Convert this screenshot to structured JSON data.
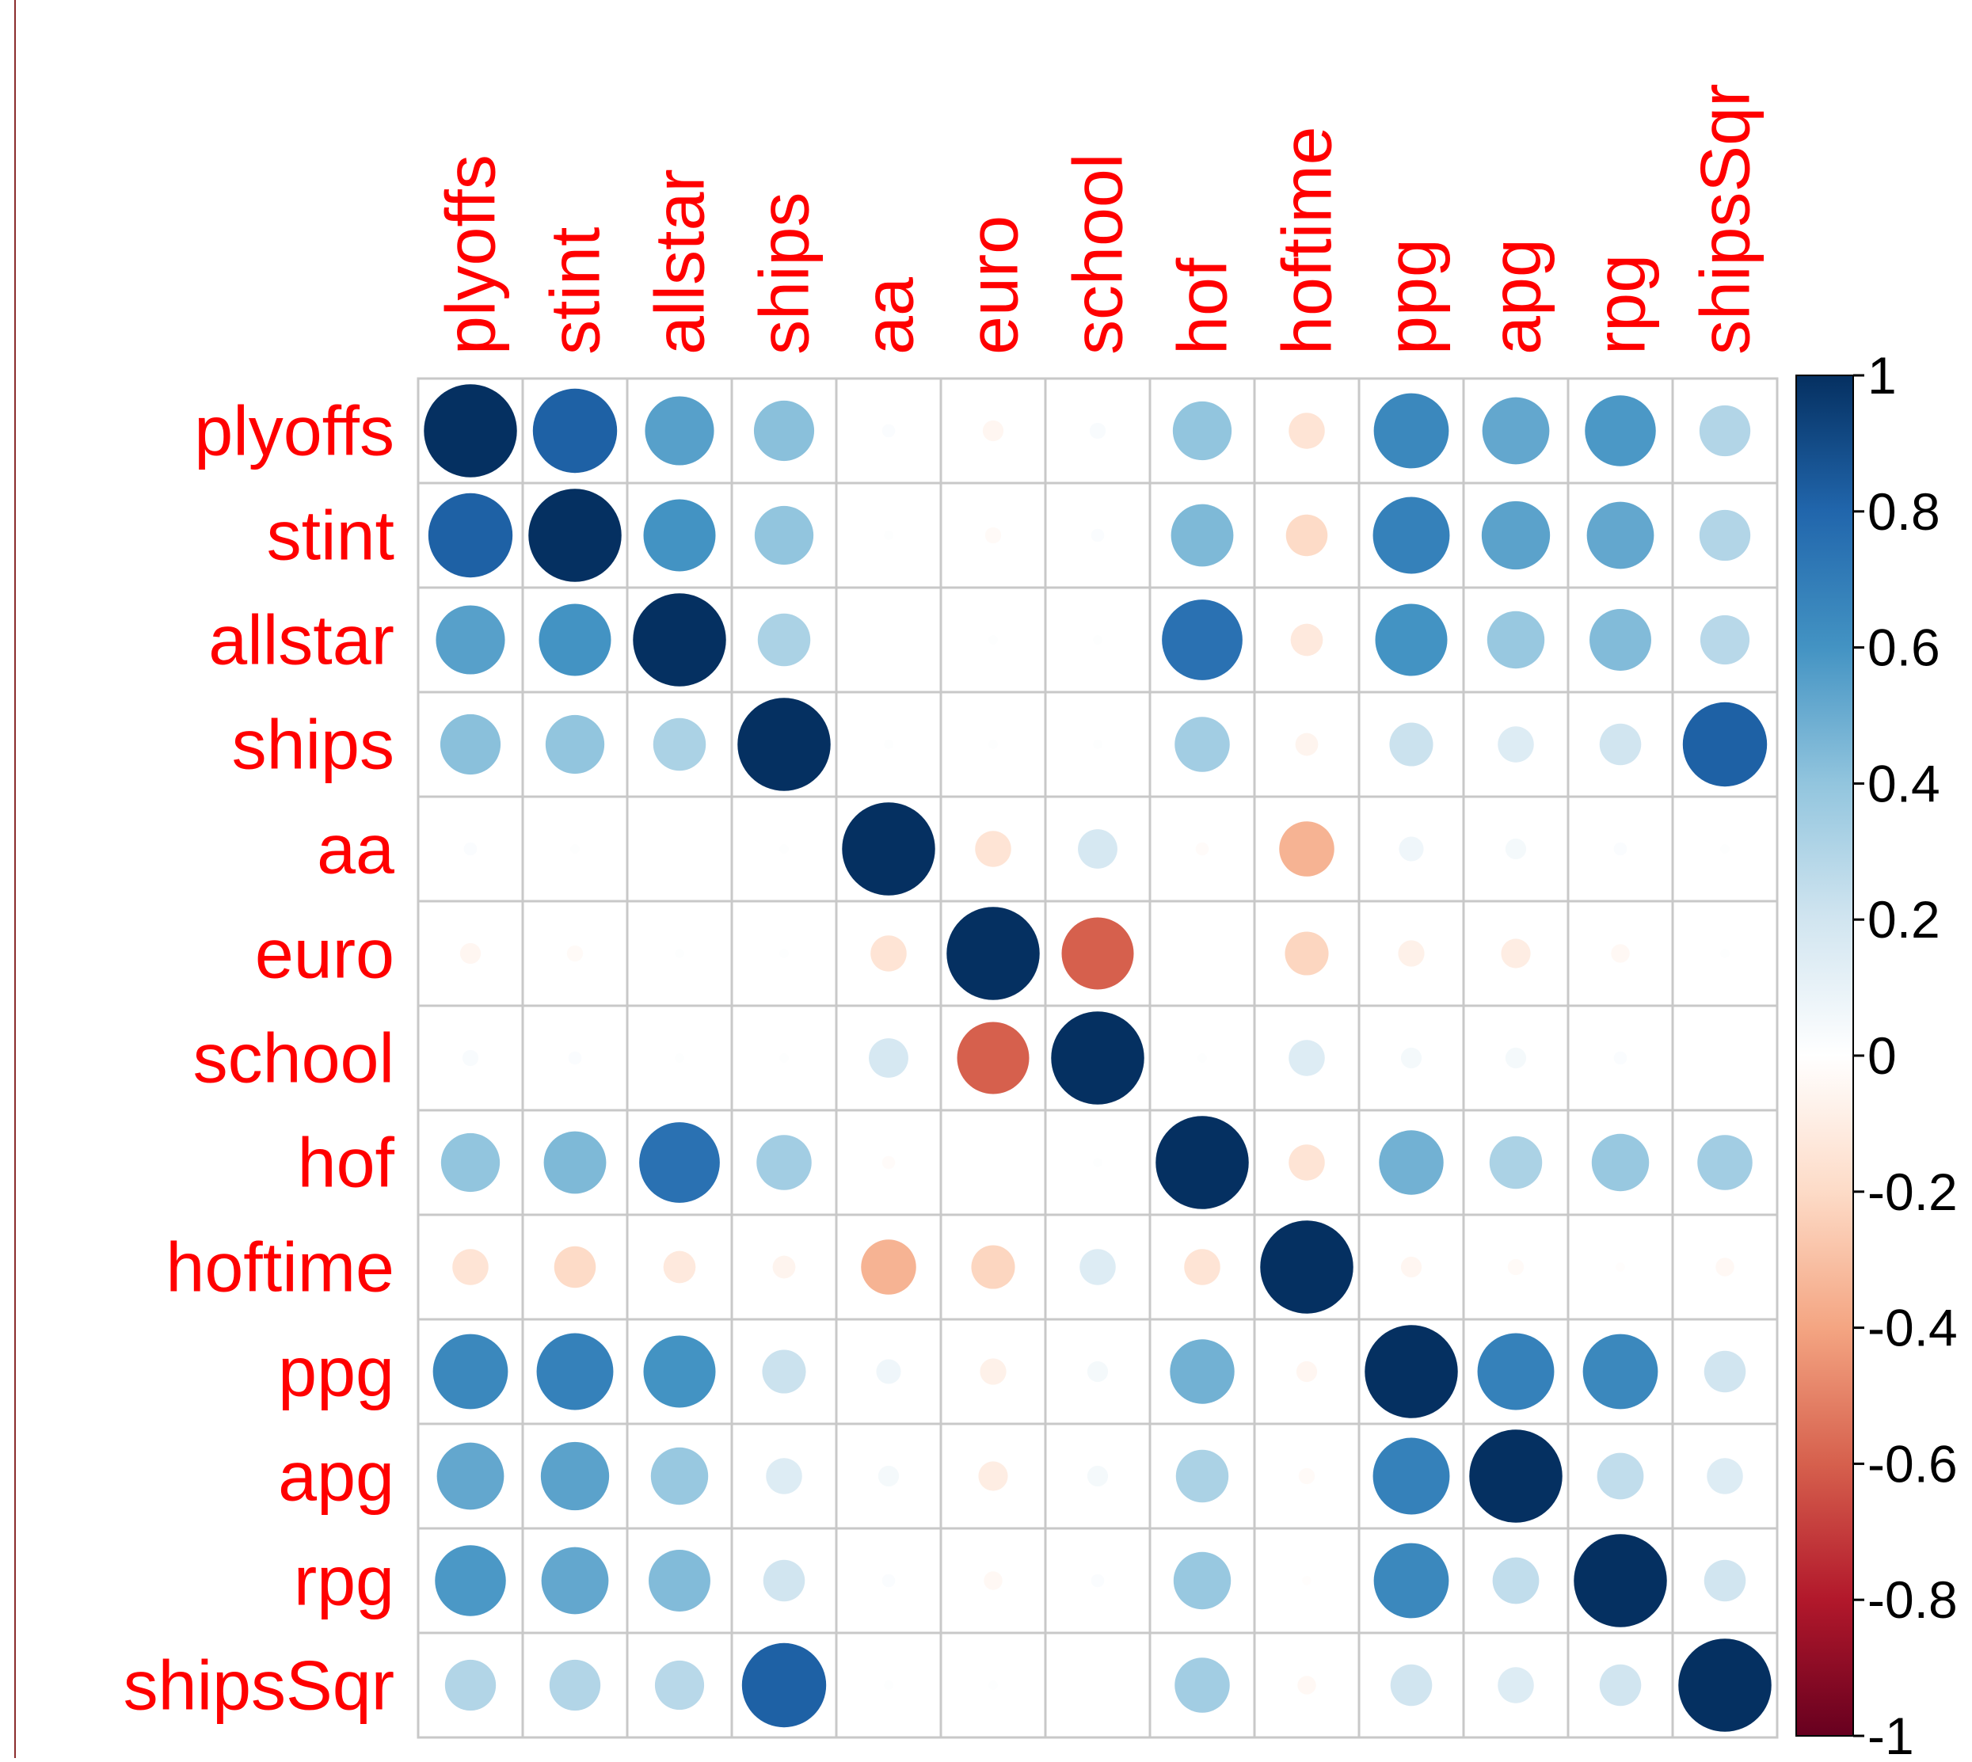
{
  "chart_data": {
    "type": "heatmap",
    "variables": [
      "plyoffs",
      "stint",
      "allstar",
      "ships",
      "aa",
      "euro",
      "school",
      "hof",
      "hoftime",
      "ppg",
      "apg",
      "rpg",
      "shipsSqr"
    ],
    "matrix": [
      [
        1.0,
        0.82,
        0.55,
        0.42,
        0.02,
        -0.05,
        0.03,
        0.4,
        -0.15,
        0.65,
        0.52,
        0.58,
        0.3
      ],
      [
        0.82,
        1.0,
        0.6,
        0.4,
        0.01,
        -0.03,
        0.02,
        0.45,
        -0.2,
        0.68,
        0.54,
        0.52,
        0.3
      ],
      [
        0.55,
        0.6,
        1.0,
        0.32,
        0.0,
        0.01,
        0.01,
        0.75,
        -0.12,
        0.6,
        0.38,
        0.44,
        0.28
      ],
      [
        0.42,
        0.4,
        0.32,
        1.0,
        0.01,
        0.01,
        0.01,
        0.35,
        -0.06,
        0.22,
        0.15,
        0.2,
        0.82
      ],
      [
        0.02,
        0.01,
        0.0,
        0.01,
        1.0,
        -0.15,
        0.18,
        -0.02,
        -0.35,
        0.07,
        0.05,
        0.02,
        0.01
      ],
      [
        -0.05,
        -0.03,
        0.01,
        0.01,
        -0.15,
        1.0,
        -0.6,
        0.0,
        -0.22,
        -0.08,
        -0.1,
        -0.04,
        0.01
      ],
      [
        0.03,
        0.02,
        0.01,
        0.01,
        0.18,
        -0.6,
        1.0,
        0.01,
        0.15,
        0.05,
        0.05,
        0.02,
        0.0
      ],
      [
        0.4,
        0.45,
        0.75,
        0.35,
        -0.02,
        0.0,
        0.01,
        1.0,
        -0.15,
        0.48,
        0.32,
        0.38,
        0.35
      ],
      [
        -0.15,
        -0.2,
        -0.12,
        -0.06,
        -0.35,
        -0.22,
        0.15,
        -0.15,
        1.0,
        -0.05,
        -0.03,
        -0.01,
        -0.04
      ],
      [
        0.65,
        0.68,
        0.6,
        0.22,
        0.07,
        -0.08,
        0.05,
        0.48,
        -0.05,
        1.0,
        0.68,
        0.65,
        0.2
      ],
      [
        0.52,
        0.54,
        0.38,
        0.15,
        0.05,
        -0.1,
        0.05,
        0.32,
        -0.03,
        0.68,
        1.0,
        0.25,
        0.15
      ],
      [
        0.58,
        0.52,
        0.44,
        0.2,
        0.02,
        -0.04,
        0.02,
        0.38,
        -0.01,
        0.65,
        0.25,
        1.0,
        0.2
      ],
      [
        0.3,
        0.3,
        0.28,
        0.82,
        0.01,
        0.01,
        0.0,
        0.35,
        -0.04,
        0.2,
        0.15,
        0.2,
        1.0
      ]
    ],
    "colorbar": {
      "ticks": [
        "1",
        "0.8",
        "0.6",
        "0.4",
        "0.2",
        "0",
        "-0.2",
        "-0.4",
        "-0.6",
        "-0.8",
        "-1"
      ],
      "range": [
        -1,
        1
      ],
      "colors": {
        "-1": "#67001f",
        "-0.8": "#b2182b",
        "-0.6": "#d6604d",
        "-0.4": "#f4a582",
        "-0.2": "#fddbc7",
        "0": "#ffffff",
        "0.2": "#d1e5f0",
        "0.4": "#92c5de",
        "0.6": "#4393c3",
        "0.8": "#2166ac",
        "1": "#053061"
      }
    },
    "label_color": "#ff0000",
    "grid_color": "#c8c8c8",
    "xlabel": "",
    "ylabel": "",
    "title": ""
  }
}
